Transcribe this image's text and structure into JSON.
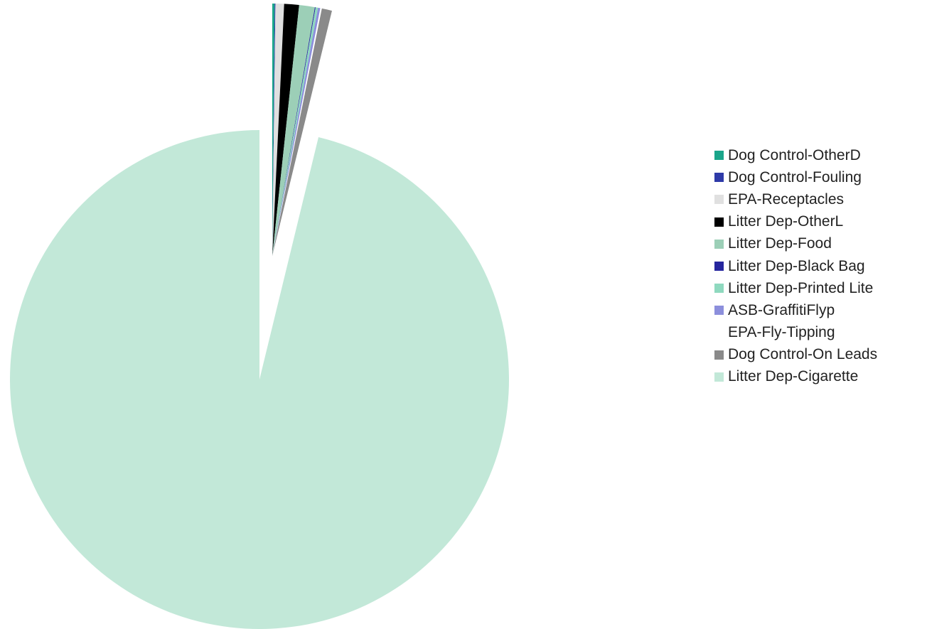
{
  "chart_data": {
    "type": "pie",
    "title": "",
    "legend_position": "right",
    "start_angle_deg": 0,
    "direction": "clockwise",
    "series": [
      {
        "values": [
          {
            "label": "Dog Control-OtherD",
            "value": 0.15,
            "color": "#1aa58a",
            "exploded": true
          },
          {
            "label": "Dog Control-Fouling",
            "value": 0.05,
            "color": "#2e3aa8",
            "exploded": true
          },
          {
            "label": "EPA-Receptacles",
            "value": 0.55,
            "color": "#e0e0e0",
            "exploded": true
          },
          {
            "label": "Litter Dep-OtherL",
            "value": 0.95,
            "color": "#000000",
            "exploded": true
          },
          {
            "label": "Litter Dep-Food",
            "value": 1.0,
            "color": "#9ccfb7",
            "exploded": true
          },
          {
            "label": "Litter Dep-Black Bag",
            "value": 0.05,
            "color": "#26269e",
            "exploded": true
          },
          {
            "label": "Litter Dep-Printed Lite",
            "value": 0.15,
            "color": "#8fd9bf",
            "exploded": true
          },
          {
            "label": "ASB-GraffitiFlyp",
            "value": 0.15,
            "color": "#8c8fdc",
            "exploded": true
          },
          {
            "label": "EPA-Fly-Tipping",
            "value": 0.1,
            "color": "#ffffff",
            "exploded": true
          },
          {
            "label": "Dog Control-On Leads",
            "value": 0.65,
            "color": "#8a8a8a",
            "exploded": true
          },
          {
            "label": "Litter Dep-Cigarette",
            "value": 96.2,
            "color": "#c2e8d8",
            "exploded": false
          }
        ]
      }
    ]
  }
}
